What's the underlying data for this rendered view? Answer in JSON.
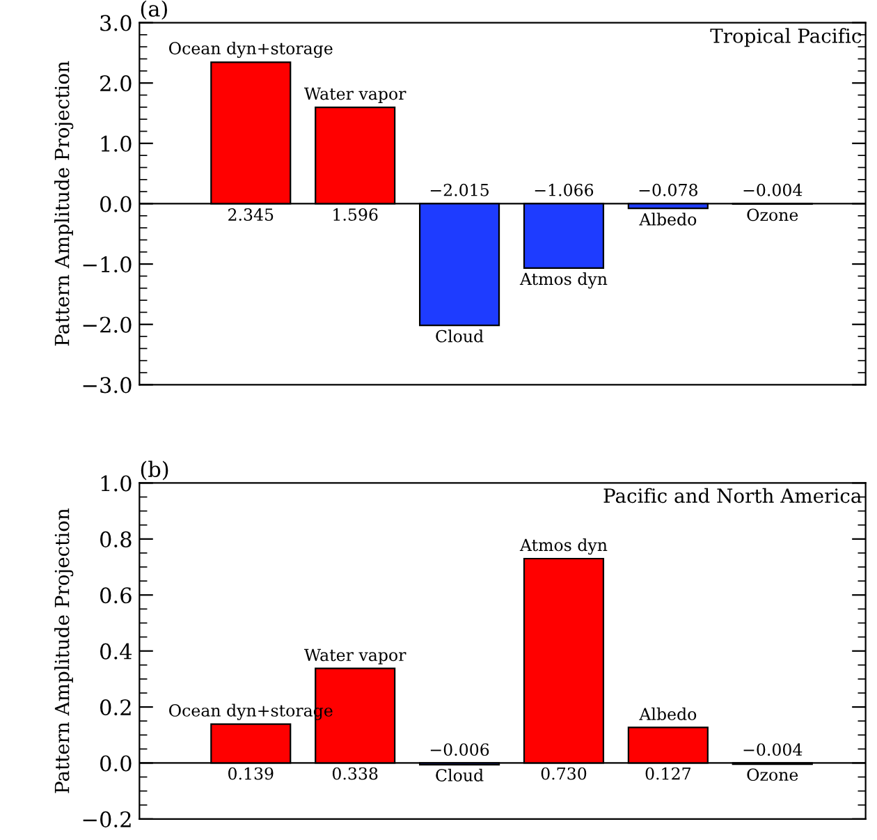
{
  "chart_data": [
    {
      "type": "bar",
      "title": "Tropical Pacific",
      "ylabel": "Pattern Amplitude Projection",
      "annotations": [
        "(a)"
      ],
      "categories": [
        "Ocean dyn+storage",
        "Water vapor",
        "Cloud",
        "Atmos dyn",
        "Albedo",
        "Ozone"
      ],
      "values": [
        2.345,
        1.596,
        -2.015,
        -1.066,
        -0.078,
        -0.004
      ],
      "colors": [
        "#ff0000",
        "#ff0000",
        "#1e3cff",
        "#1e3cff",
        "#1e3cff",
        "#1e3cff"
      ],
      "value_labels": [
        "2.345",
        "1.596",
        "−2.015",
        "−1.066",
        "−0.078",
        "−0.004"
      ],
      "ylim": [
        -3.0,
        3.0
      ],
      "yticks": [
        {
          "value": -3.0,
          "label": "−3.0"
        },
        {
          "value": -2.0,
          "label": "−2.0"
        },
        {
          "value": -1.0,
          "label": "−1.0"
        },
        {
          "value": 0.0,
          "label": "0.0"
        },
        {
          "value": 1.0,
          "label": "1.0"
        },
        {
          "value": 2.0,
          "label": "2.0"
        },
        {
          "value": 3.0,
          "label": "3.0"
        }
      ],
      "ref_lines": [
        {
          "axis": "y",
          "value": 0,
          "color": "#000000"
        }
      ],
      "tick_labels": "y",
      "grid": false,
      "legend": false
    },
    {
      "type": "bar",
      "title": "Pacific and North America",
      "ylabel": "Pattern Amplitude Projection",
      "annotations": [
        "(b)"
      ],
      "categories": [
        "Ocean dyn+storage",
        "Water vapor",
        "Cloud",
        "Atmos dyn",
        "Albedo",
        "Ozone"
      ],
      "values": [
        0.139,
        0.338,
        -0.006,
        0.73,
        0.127,
        -0.004
      ],
      "colors": [
        "#ff0000",
        "#ff0000",
        "#1e3cff",
        "#ff0000",
        "#ff0000",
        "#1e3cff"
      ],
      "value_labels": [
        "0.139",
        "0.338",
        "−0.006",
        "0.730",
        "0.127",
        "−0.004"
      ],
      "ylim": [
        -0.2,
        1.0
      ],
      "yticks": [
        {
          "value": -0.2,
          "label": "−0.2"
        },
        {
          "value": 0.0,
          "label": "0.0"
        },
        {
          "value": 0.2,
          "label": "0.2"
        },
        {
          "value": 0.4,
          "label": "0.4"
        },
        {
          "value": 0.6,
          "label": "0.6"
        },
        {
          "value": 0.8,
          "label": "0.8"
        },
        {
          "value": 1.0,
          "label": "1.0"
        }
      ],
      "ref_lines": [
        {
          "axis": "y",
          "value": 0,
          "color": "#000000"
        }
      ],
      "tick_labels": "y",
      "grid": false,
      "legend": false
    }
  ]
}
